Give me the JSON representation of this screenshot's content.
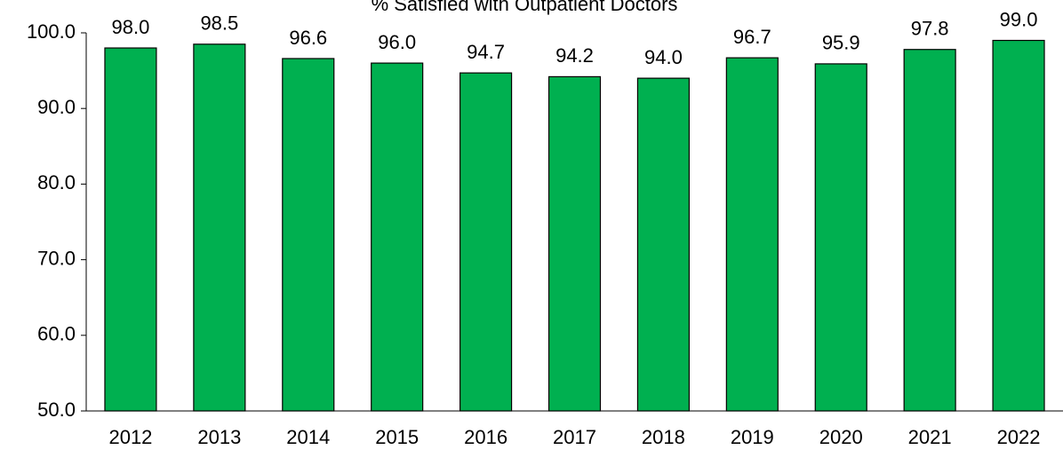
{
  "chart_data": {
    "type": "bar",
    "title": "% Satisfied with Outpatient Doctors",
    "categories": [
      "2012",
      "2013",
      "2014",
      "2015",
      "2016",
      "2017",
      "2018",
      "2019",
      "2020",
      "2021",
      "2022"
    ],
    "values": [
      98.0,
      98.5,
      96.6,
      96.0,
      94.7,
      94.2,
      94.0,
      96.7,
      95.9,
      97.8,
      99.0
    ],
    "value_labels": [
      "98.0",
      "98.5",
      "96.6",
      "96.0",
      "94.7",
      "94.2",
      "94.0",
      "96.7",
      "95.9",
      "97.8",
      "99.0"
    ],
    "color": "#00b050",
    "ylim": [
      50,
      100
    ],
    "yticks": [
      {
        "value": 50,
        "label": "50.0"
      },
      {
        "value": 60,
        "label": "60.0"
      },
      {
        "value": 70,
        "label": "70.0"
      },
      {
        "value": 80,
        "label": "80.0"
      },
      {
        "value": 90,
        "label": "90.0"
      },
      {
        "value": 100,
        "label": "100.0"
      }
    ],
    "grid": false
  }
}
